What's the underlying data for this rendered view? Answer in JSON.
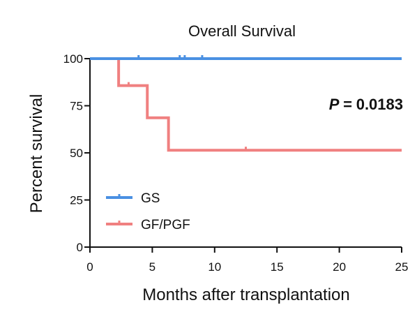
{
  "chart_data": {
    "type": "line",
    "title": "Overall Survival",
    "xlabel": "Months after transplantation",
    "ylabel": "Percent survival",
    "xlim": [
      0,
      25
    ],
    "ylim": [
      0,
      100
    ],
    "xticks": [
      "0",
      "5",
      "10",
      "15",
      "20",
      "25"
    ],
    "yticks": [
      "0",
      "25",
      "50",
      "75",
      "100"
    ],
    "annotation": {
      "label": "P = ",
      "value": "0.0183"
    },
    "legend_position": "bottom-left",
    "grid": false,
    "step": true,
    "series": [
      {
        "name": "GS",
        "color": "#4a90e2",
        "x": [
          0,
          25
        ],
        "y": [
          100,
          100
        ],
        "censored_x": [
          3.9,
          7.2,
          7.6,
          9.0
        ]
      },
      {
        "name": "GF/PGF",
        "color": "#f08080",
        "x": [
          0,
          2.3,
          4.6,
          6.3,
          25
        ],
        "y": [
          100,
          85.7,
          68.6,
          51.4,
          51.4
        ],
        "censored_x": [
          3.1,
          12.5
        ]
      }
    ]
  }
}
